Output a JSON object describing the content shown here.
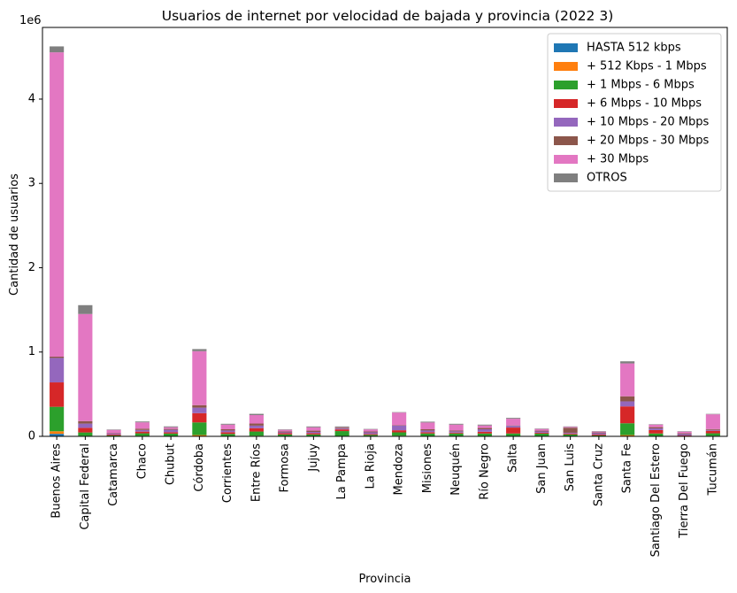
{
  "chart_data": {
    "type": "bar",
    "stacked": true,
    "title": "Usuarios de internet por velocidad de bajada y provincia (2022 3)",
    "xlabel": "Provincia",
    "ylabel": "Cantidad de usuarios",
    "y_offset_label": "1e6",
    "ylim": [
      0,
      4850000
    ],
    "yticks": [
      0,
      1000000,
      2000000,
      3000000,
      4000000
    ],
    "ytick_labels": [
      "0",
      "1",
      "2",
      "3",
      "4"
    ],
    "legend_position": "top-right",
    "grid": false,
    "categories": [
      "Buenos Aires",
      "Capital Federal",
      "Catamarca",
      "Chaco",
      "Chubut",
      "Córdoba",
      "Corrientes",
      "Entre Ríos",
      "Formosa",
      "Jujuy",
      "La Pampa",
      "La Rioja",
      "Mendoza",
      "Misiones",
      "Neuquén",
      "Río Negro",
      "Salta",
      "San Juan",
      "San Luis",
      "Santa Cruz",
      "Santa Fe",
      "Santiago Del Estero",
      "Tierra Del Fuego",
      "Tucumán"
    ],
    "series": [
      {
        "name": "HASTA 512 kbps",
        "color": "#1f77b4",
        "values": [
          30000,
          1000,
          500,
          1000,
          1000,
          5000,
          1000,
          2000,
          500,
          500,
          500,
          500,
          2000,
          1000,
          1000,
          1000,
          1000,
          500,
          500,
          500,
          5000,
          1000,
          300,
          1000
        ]
      },
      {
        "name": "+ 512 Kbps - 1 Mbps",
        "color": "#ff7f0e",
        "values": [
          30000,
          5000,
          1000,
          5000,
          2000,
          10000,
          3000,
          5000,
          2000,
          2000,
          2000,
          2000,
          5000,
          3000,
          3000,
          3000,
          3000,
          2000,
          2000,
          1000,
          10000,
          3000,
          500,
          5000
        ]
      },
      {
        "name": "+ 1 Mbps - 6 Mbps",
        "color": "#2ca02c",
        "values": [
          290000,
          40000,
          10000,
          30000,
          30000,
          150000,
          25000,
          50000,
          20000,
          20000,
          60000,
          15000,
          40000,
          30000,
          30000,
          30000,
          30000,
          30000,
          20000,
          10000,
          140000,
          30000,
          5000,
          30000
        ]
      },
      {
        "name": "+ 6 Mbps - 10 Mbps",
        "color": "#d62728",
        "values": [
          290000,
          55000,
          10000,
          20000,
          15000,
          110000,
          20000,
          40000,
          15000,
          15000,
          20000,
          10000,
          25000,
          15000,
          10000,
          20000,
          70000,
          10000,
          10000,
          10000,
          200000,
          40000,
          5000,
          30000
        ]
      },
      {
        "name": "+ 10 Mbps - 20 Mbps",
        "color": "#9467bd",
        "values": [
          290000,
          50000,
          10000,
          20000,
          30000,
          65000,
          20000,
          30000,
          10000,
          15000,
          10000,
          20000,
          55000,
          20000,
          15000,
          30000,
          20000,
          15000,
          10000,
          15000,
          60000,
          20000,
          15000,
          10000
        ]
      },
      {
        "name": "+ 20 Mbps - 30 Mbps",
        "color": "#8c564b",
        "values": [
          15000,
          30000,
          5000,
          15000,
          10000,
          30000,
          15000,
          25000,
          10000,
          15000,
          10000,
          10000,
          5000,
          15000,
          10000,
          15000,
          5000,
          10000,
          60000,
          10000,
          60000,
          15000,
          10000,
          10000
        ]
      },
      {
        "name": "+ 30 Mbps",
        "color": "#e377c2",
        "values": [
          3610000,
          1270000,
          40000,
          75000,
          20000,
          640000,
          55000,
          100000,
          20000,
          40000,
          5000,
          25000,
          150000,
          80000,
          70000,
          30000,
          80000,
          20000,
          10000,
          10000,
          390000,
          30000,
          20000,
          175000
        ]
      },
      {
        "name": "OTROS",
        "color": "#7f7f7f",
        "values": [
          70000,
          105000,
          5000,
          10000,
          10000,
          25000,
          10000,
          15000,
          5000,
          10000,
          10000,
          5000,
          5000,
          10000,
          10000,
          10000,
          10000,
          5000,
          5000,
          5000,
          25000,
          5000,
          5000,
          5000
        ]
      }
    ]
  }
}
